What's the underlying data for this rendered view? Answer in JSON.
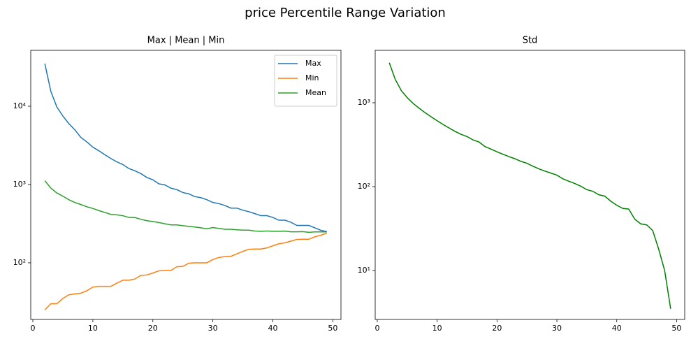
{
  "title": "price Percentile Range Variation",
  "chart_data": [
    {
      "type": "line",
      "title": "Max | Mean | Min",
      "log_y": true,
      "legend": "upper right",
      "x": [
        2,
        3,
        4,
        5,
        6,
        7,
        8,
        9,
        10,
        11,
        12,
        13,
        14,
        15,
        16,
        17,
        18,
        19,
        20,
        21,
        22,
        23,
        24,
        25,
        26,
        27,
        28,
        29,
        30,
        31,
        32,
        33,
        34,
        35,
        36,
        37,
        38,
        39,
        40,
        41,
        42,
        43,
        44,
        45,
        46,
        47,
        48,
        49
      ],
      "series": [
        {
          "name": "Max",
          "color": "#1f77b4",
          "values": [
            35000,
            15500,
            9800,
            7500,
            6000,
            5000,
            4000,
            3500,
            3000,
            2700,
            2400,
            2150,
            1950,
            1800,
            1600,
            1500,
            1380,
            1230,
            1150,
            1020,
            990,
            900,
            860,
            790,
            760,
            700,
            680,
            640,
            590,
            570,
            540,
            500,
            500,
            470,
            450,
            425,
            400,
            400,
            380,
            350,
            350,
            330,
            300,
            300,
            300,
            280,
            260,
            250
          ]
        },
        {
          "name": "Min",
          "color": "#ff7f0e",
          "values": [
            25,
            30,
            30,
            35,
            39,
            40,
            41,
            44,
            49,
            50,
            50,
            50,
            55,
            60,
            60,
            62,
            69,
            70,
            74,
            79,
            80,
            80,
            89,
            90,
            99,
            100,
            100,
            100,
            110,
            117,
            120,
            121,
            130,
            140,
            149,
            150,
            150,
            155,
            165,
            175,
            180,
            189,
            199,
            200,
            200,
            215,
            225,
            240
          ]
        },
        {
          "name": "Mean",
          "color": "#2ca02c",
          "values": [
            1120,
            900,
            780,
            710,
            640,
            590,
            555,
            520,
            495,
            465,
            440,
            415,
            410,
            400,
            380,
            378,
            360,
            345,
            337,
            327,
            315,
            305,
            305,
            298,
            292,
            287,
            280,
            272,
            282,
            275,
            268,
            268,
            264,
            261,
            261,
            255,
            253,
            255,
            253,
            253,
            254,
            249,
            249,
            250,
            245,
            248,
            248,
            248
          ]
        }
      ],
      "xlim": [
        -0.35,
        51.35
      ],
      "xticks": [
        0,
        10,
        20,
        30,
        40,
        50
      ],
      "ylim": [
        18.9,
        51800
      ],
      "yticks": [
        {
          "value": 100,
          "label": "10²"
        },
        {
          "value": 1000,
          "label": "10³"
        },
        {
          "value": 10000,
          "label": "10⁴"
        }
      ]
    },
    {
      "type": "line",
      "title": "Std",
      "log_y": true,
      "x": [
        2,
        3,
        4,
        5,
        6,
        7,
        8,
        9,
        10,
        11,
        12,
        13,
        14,
        15,
        16,
        17,
        18,
        19,
        20,
        21,
        22,
        23,
        24,
        25,
        26,
        27,
        28,
        29,
        30,
        31,
        32,
        33,
        34,
        35,
        36,
        37,
        38,
        39,
        40,
        41,
        42,
        43,
        44,
        45,
        46,
        47,
        48,
        49
      ],
      "series": [
        {
          "color": "#008000",
          "values": [
            3000,
            1900,
            1400,
            1150,
            980,
            860,
            760,
            680,
            610,
            550,
            500,
            455,
            420,
            395,
            360,
            340,
            300,
            280,
            260,
            243,
            228,
            215,
            200,
            190,
            175,
            163,
            153,
            145,
            137,
            124,
            116,
            109,
            101,
            92,
            88,
            80,
            77,
            67,
            60,
            55,
            54,
            41,
            36,
            35,
            30,
            18,
            10,
            3.5
          ]
        }
      ],
      "xlim": [
        -0.35,
        51.35
      ],
      "xticks": [
        0,
        10,
        20,
        30,
        40,
        50
      ],
      "ylim": [
        2.61,
        4217
      ],
      "yticks": [
        {
          "value": 10,
          "label": "10¹"
        },
        {
          "value": 100,
          "label": "10²"
        },
        {
          "value": 1000,
          "label": "10³"
        }
      ]
    }
  ]
}
